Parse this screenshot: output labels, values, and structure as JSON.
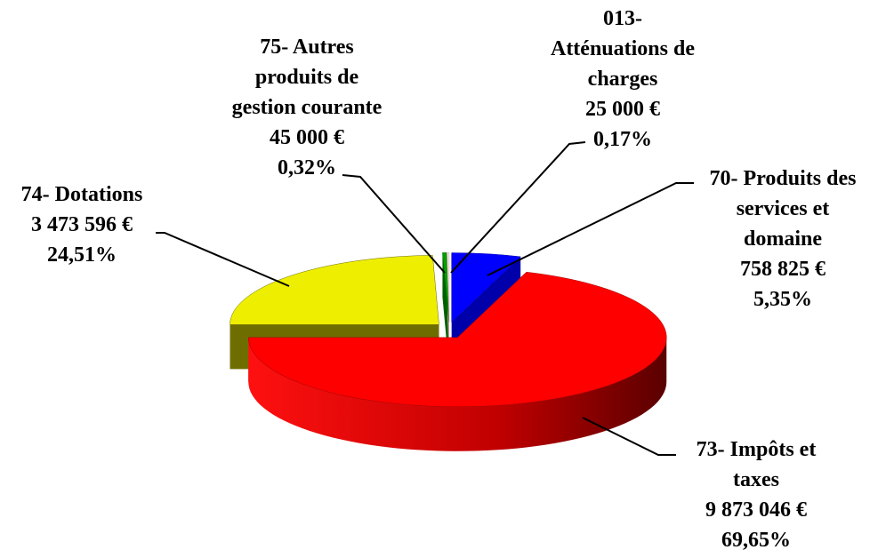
{
  "chart_data": {
    "type": "pie",
    "categories": [
      [
        "70- Produits des",
        "services et",
        "domaine"
      ],
      [
        "73- Impôts et",
        "taxes"
      ],
      [
        "74- Dotations"
      ],
      [
        "75- Autres",
        "produits de",
        "gestion courante"
      ],
      [
        "013-",
        "Atténuations de",
        "charges"
      ]
    ],
    "values": [
      758825,
      9873046,
      3473596,
      45000,
      25000
    ],
    "value_labels": [
      "758 825 €",
      "9 873 046 €",
      "3 473 596 €",
      "45 000 €",
      "25 000 €"
    ],
    "percentages": [
      5.35,
      69.65,
      24.51,
      0.32,
      0.17
    ],
    "percentage_labels": [
      "5,35%",
      "69,65%",
      "24,51%",
      "0,32%",
      "0,17%"
    ],
    "colors": [
      "#0000ff",
      "#ff0000",
      "#eeee00",
      "#00a000",
      "#ffe4e4"
    ],
    "side_colors": [
      "#0000aa",
      "#a00000",
      "#6e6e00",
      "#006000",
      "#c8a0a0"
    ]
  }
}
